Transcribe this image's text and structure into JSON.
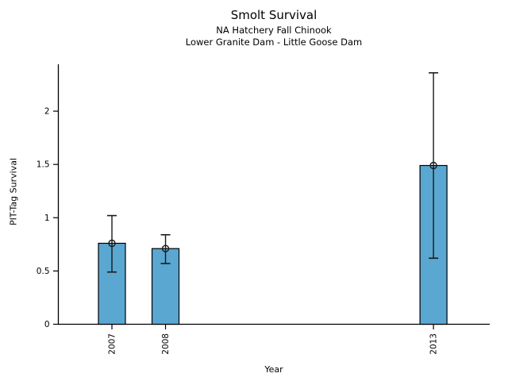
{
  "chart_data": {
    "type": "bar",
    "title": "Smolt Survival",
    "subtitle": [
      "NA Hatchery Fall Chinook",
      "Lower Granite Dam - Little Goose Dam"
    ],
    "xlabel": "Year",
    "ylabel": "PIT-Tag Survival",
    "categories": [
      "2007",
      "2008",
      "2013"
    ],
    "x": [
      2007,
      2008,
      2013
    ],
    "values": [
      0.76,
      0.71,
      1.49
    ],
    "error_low": [
      0.49,
      0.57,
      0.62
    ],
    "error_high": [
      1.02,
      0.84,
      2.36
    ],
    "xlim": [
      2006,
      2014.05
    ],
    "ylim": [
      0,
      2.44
    ],
    "yticks": [
      0,
      0.5,
      1,
      1.5,
      2
    ],
    "ytick_labels": [
      "0",
      "0.5",
      "1",
      "1.5",
      "2"
    ],
    "xtick_rotation_deg": 90,
    "grid": false,
    "legend": false,
    "marker": "open-circle",
    "bar_color": "#5AA7D1",
    "bar_edge_color": "#000000",
    "error_bar_color": "#1a1a1a",
    "axis_color": "#000000"
  }
}
